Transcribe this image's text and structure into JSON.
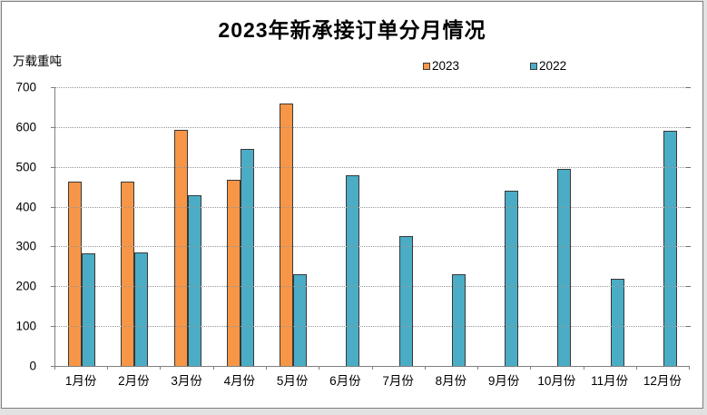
{
  "chart_data": {
    "type": "bar",
    "title": "2023年新承接订单分月情况",
    "xlabel": "",
    "ylabel": "万载重吨",
    "categories": [
      "1月份",
      "2月份",
      "3月份",
      "4月份",
      "5月份",
      "6月份",
      "7月份",
      "8月份",
      "9月份",
      "10月份",
      "11月份",
      "12月份"
    ],
    "series": [
      {
        "name": "2023",
        "color": "#F79646",
        "values": [
          462,
          463,
          593,
          467,
          660,
          null,
          null,
          null,
          null,
          null,
          null,
          null
        ]
      },
      {
        "name": "2022",
        "color": "#4BACC6",
        "values": [
          282,
          284,
          429,
          546,
          231,
          478,
          326,
          231,
          440,
          494,
          220,
          591
        ]
      }
    ],
    "ylim": [
      0,
      700
    ],
    "ytick_step": 100,
    "yticks": [
      0,
      100,
      200,
      300,
      400,
      500,
      600,
      700
    ],
    "grid": true,
    "gridline_style": "dotted",
    "legend_position": "top",
    "bar_border_color": "#383838"
  }
}
